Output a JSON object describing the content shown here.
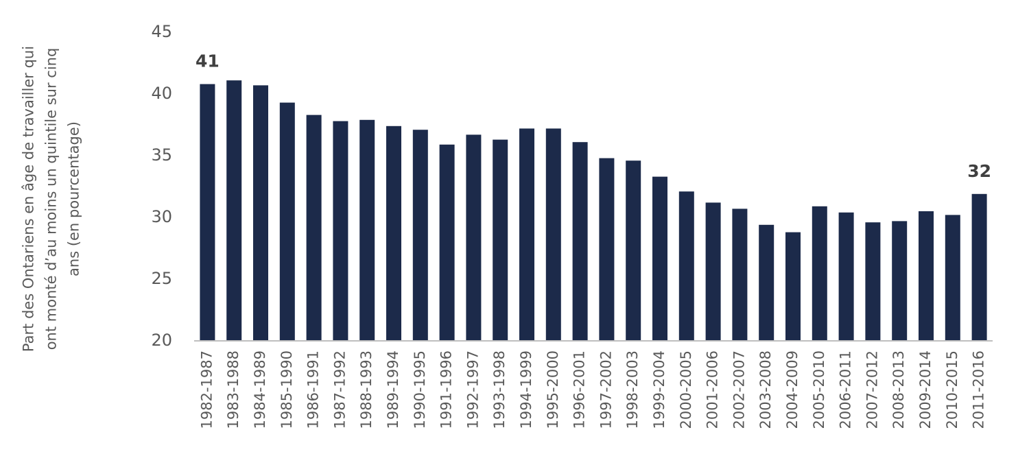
{
  "chart_data": {
    "type": "bar",
    "y_label": "Part des Ontariens en âge de travailler qui ont monté d’au moins un quintile sur cinq ans (en pourcentage)",
    "categories": [
      "1982-1987",
      "1983-1988",
      "1984-1989",
      "1985-1990",
      "1986-1991",
      "1987-1992",
      "1988-1993",
      "1989-1994",
      "1990-1995",
      "1991-1996",
      "1992-1997",
      "1993-1998",
      "1994-1999",
      "1995-2000",
      "1996-2001",
      "1997-2002",
      "1998-2003",
      "1999-2004",
      "2000-2005",
      "2001-2006",
      "2002-2007",
      "2003-2008",
      "2004-2009",
      "2005-2010",
      "2006-2011",
      "2007-2012",
      "2008-2013",
      "2009-2014",
      "2010-2015",
      "2011-2016"
    ],
    "values": [
      40.8,
      41.1,
      40.7,
      39.3,
      38.3,
      37.8,
      37.9,
      37.4,
      37.1,
      35.9,
      36.7,
      36.3,
      37.2,
      37.2,
      36.1,
      34.8,
      34.6,
      33.3,
      32.1,
      31.2,
      30.7,
      29.4,
      28.8,
      30.9,
      30.4,
      29.6,
      29.7,
      30.5,
      30.2,
      31.9
    ],
    "value_labels": [
      "41",
      null,
      null,
      null,
      null,
      null,
      null,
      null,
      null,
      null,
      null,
      null,
      null,
      null,
      null,
      null,
      null,
      null,
      null,
      null,
      null,
      null,
      null,
      null,
      null,
      null,
      null,
      null,
      null,
      "32"
    ],
    "color": "#1c2a4a",
    "ylim": [
      20,
      45
    ],
    "yticks": [
      20,
      25,
      30,
      35,
      40,
      45
    ],
    "grid": false
  }
}
